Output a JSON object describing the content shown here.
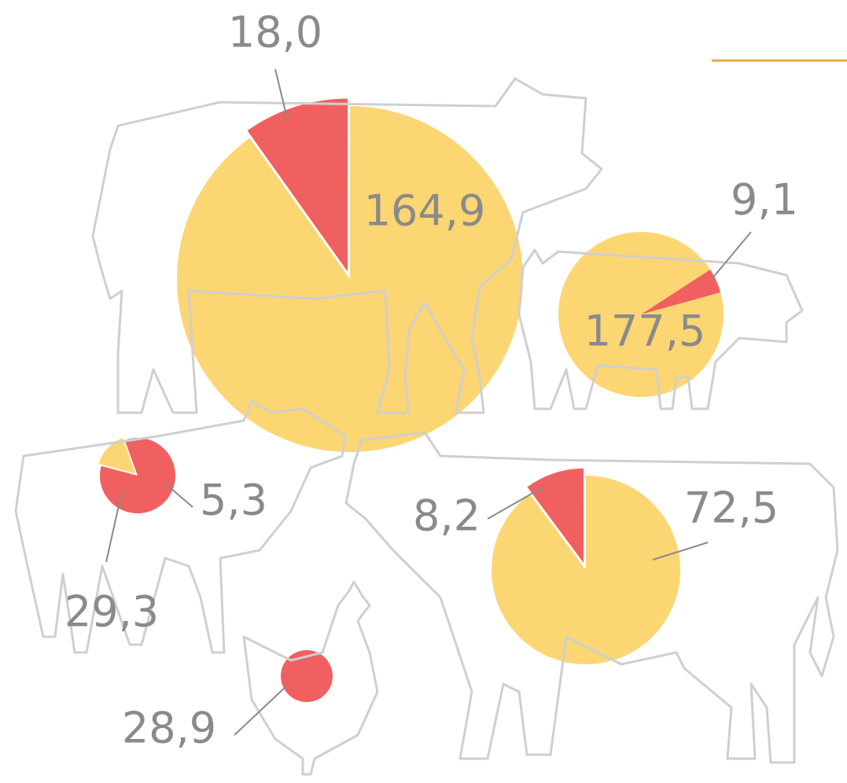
{
  "chart_data": [
    {
      "type": "pie",
      "values": [
        18.0,
        164.9
      ],
      "value_labels": [
        "18,0",
        "164,9"
      ],
      "colors": [
        "#f06060",
        "#fcd672"
      ]
    },
    {
      "type": "pie",
      "values": [
        9.1,
        177.5
      ],
      "value_labels": [
        "9,1",
        "177,5"
      ],
      "colors": [
        "#f06060",
        "#fcd672"
      ]
    },
    {
      "type": "pie",
      "values": [
        29.3,
        5.3
      ],
      "value_labels": [
        "29,3",
        "5,3"
      ],
      "colors": [
        "#f06060",
        "#fcd672"
      ]
    },
    {
      "type": "pie",
      "values": [
        8.2,
        72.5
      ],
      "value_labels": [
        "8,2",
        "72,5"
      ],
      "colors": [
        "#f06060",
        "#fcd672"
      ]
    },
    {
      "type": "pie",
      "values": [
        28.9
      ],
      "value_labels": [
        "28,9"
      ],
      "colors": [
        "#f06060"
      ]
    }
  ]
}
